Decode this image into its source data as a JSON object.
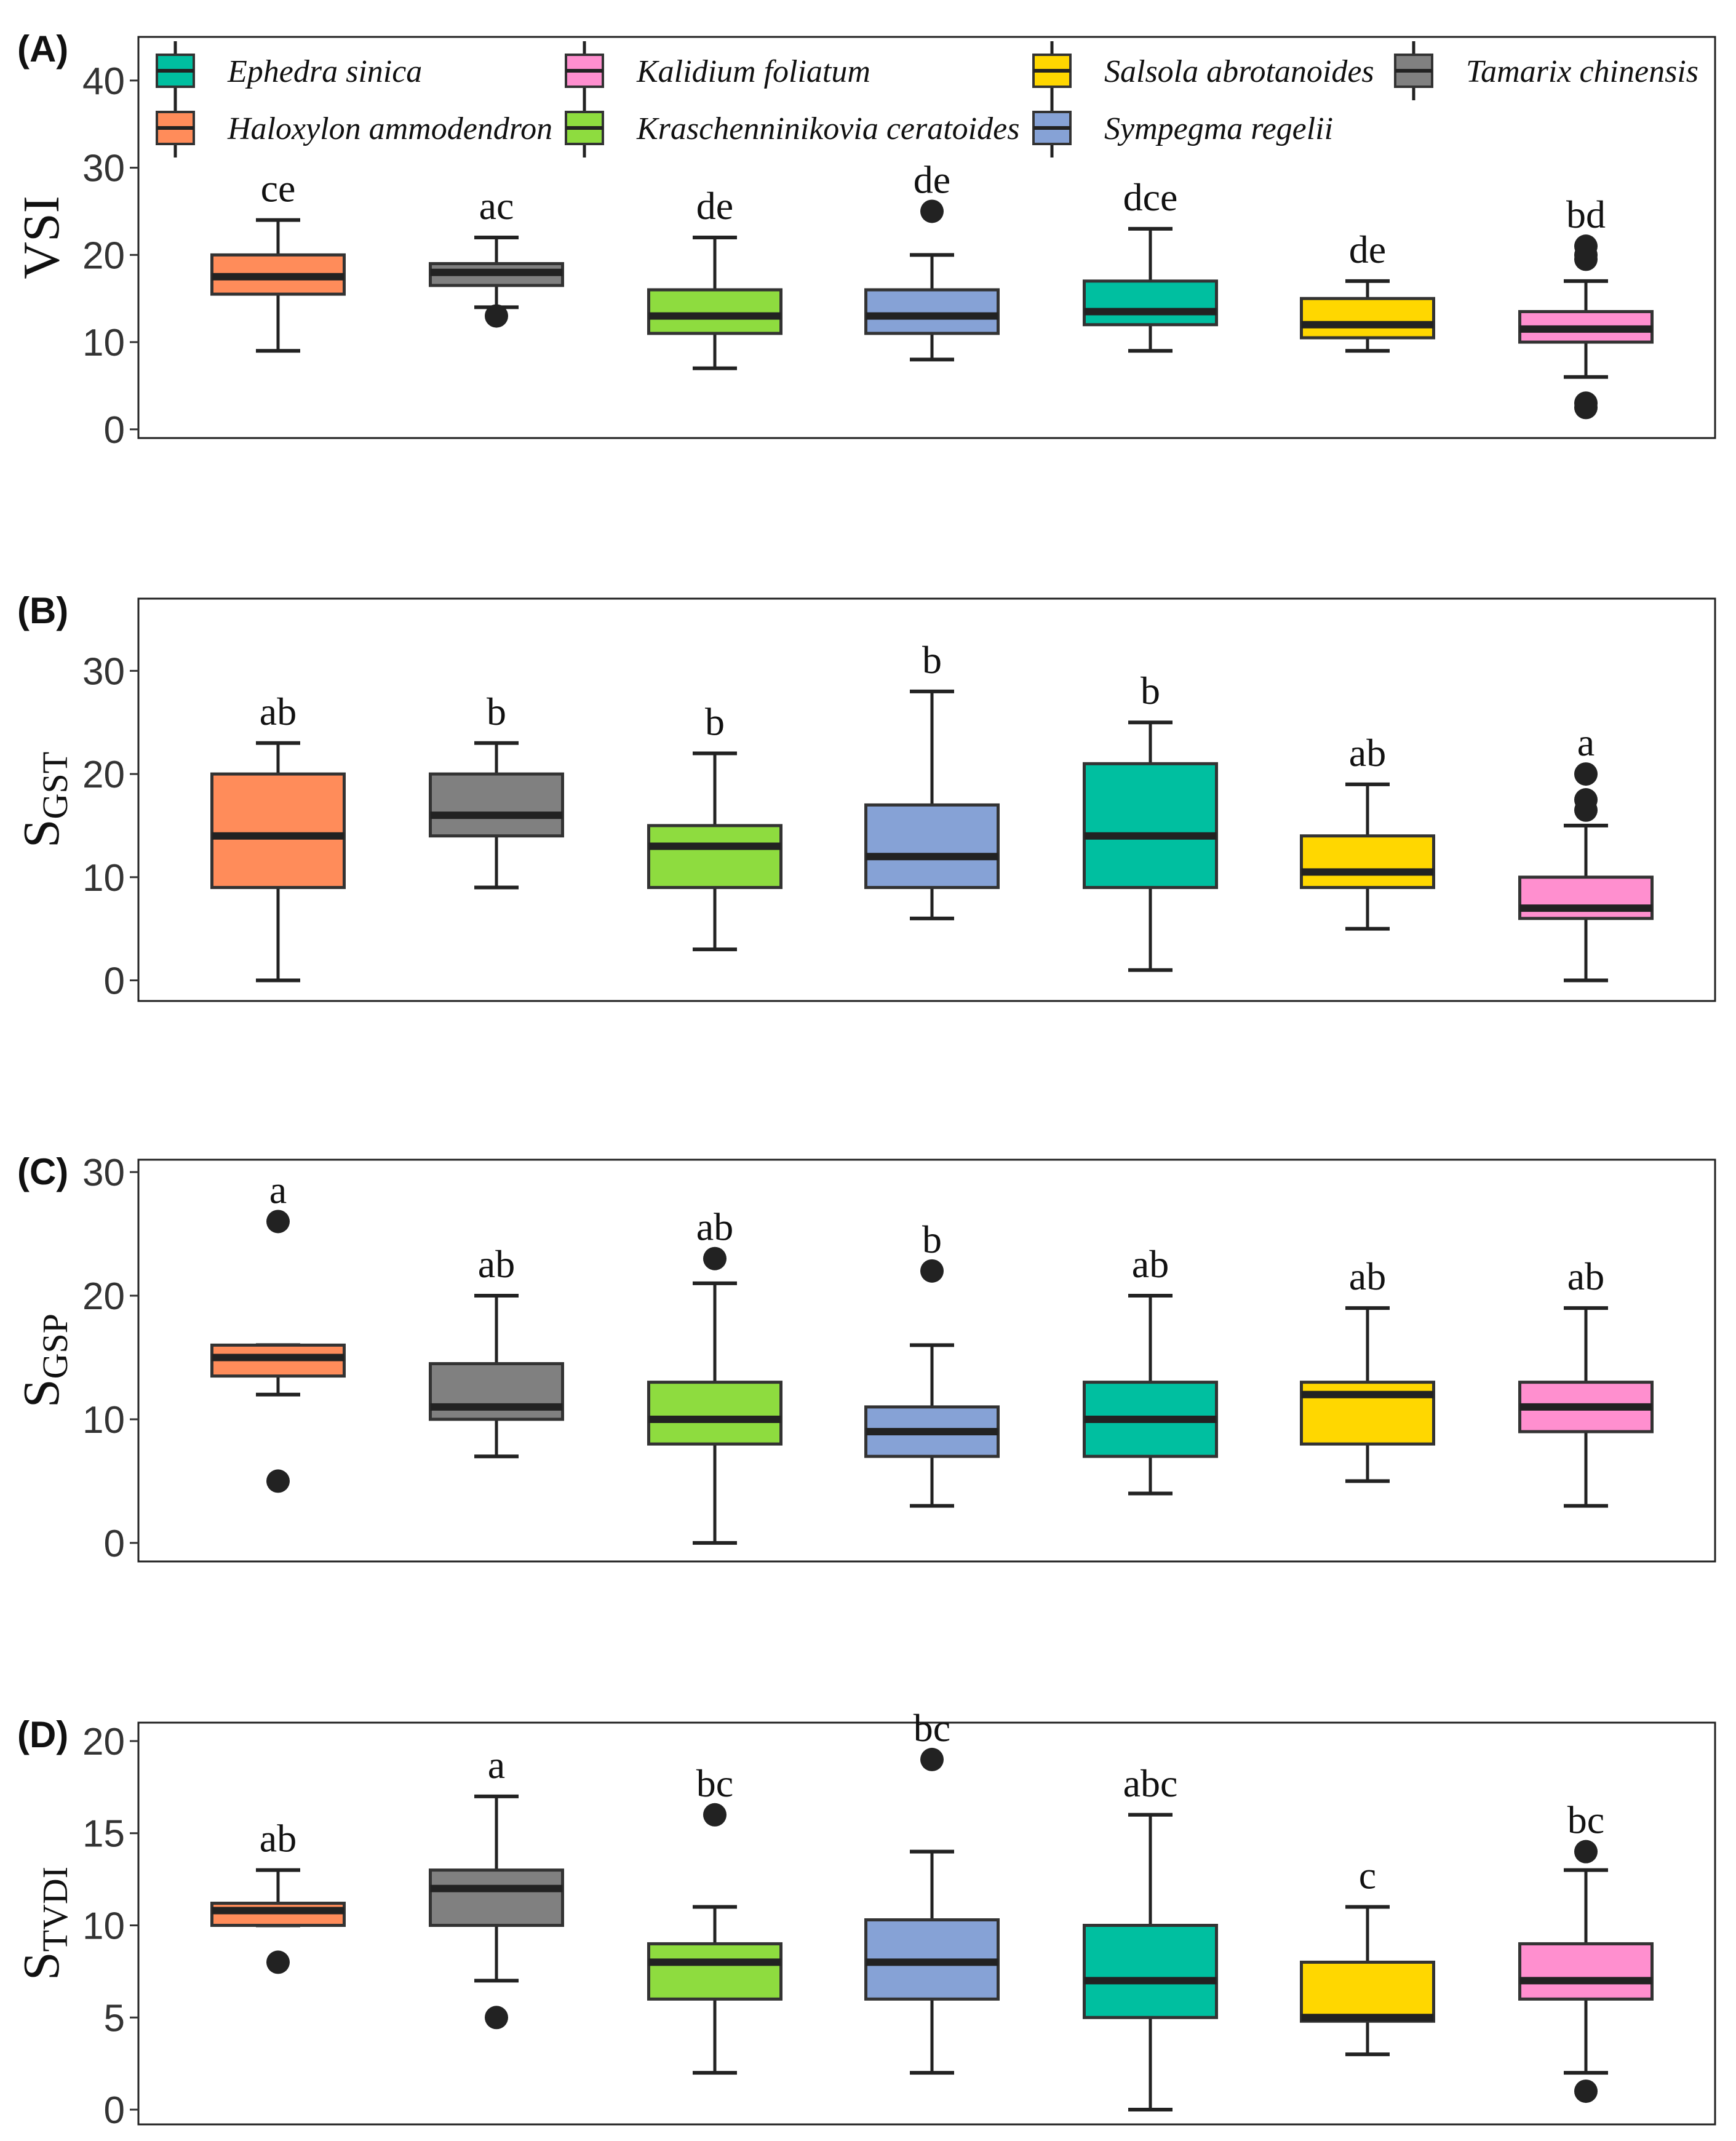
{
  "chart_data": {
    "type": "box",
    "colors": {
      "Ephedra sinica": "#00BFA0",
      "Haloxylon ammodendron": "#FF8C5A",
      "Kalidium foliatum": "#FF8FCF",
      "Kraschenninikovia ceratoides": "#8EDC3F",
      "Salsola abrotanoides": "#FFD700",
      "Sympegma regelii": "#86A2D6",
      "Tamarix chinensis": "#808080"
    },
    "legend": [
      "Ephedra sinica",
      "Kalidium foliatum",
      "Salsola abrotanoides",
      "Tamarix chinensis",
      "Haloxylon ammodendron",
      "Kraschenninikovia ceratoides",
      "Sympegma regelii"
    ],
    "species_order": [
      "Haloxylon ammodendron",
      "Tamarix chinensis",
      "Kraschenninikovia ceratoides",
      "Sympegma regelii",
      "Ephedra sinica",
      "Salsola abrotanoides",
      "Kalidium foliatum"
    ],
    "panels": [
      {
        "label": "(A)",
        "ylabel": "VSI",
        "ylabel_sub": "",
        "ylim": [
          -1,
          45
        ],
        "yticks": [
          "0",
          "10",
          "20",
          "30",
          "40"
        ],
        "tick_values": [
          0,
          10,
          20,
          30,
          40
        ],
        "boxes": [
          {
            "min": 9,
            "q1": 15.5,
            "median": 17.5,
            "q3": 20,
            "max": 24,
            "outliers": [],
            "sig": "ce"
          },
          {
            "min": 14,
            "q1": 16.5,
            "median": 18,
            "q3": 19,
            "max": 22,
            "outliers": [
              13
            ],
            "sig": "ac"
          },
          {
            "min": 7,
            "q1": 11,
            "median": 13,
            "q3": 16,
            "max": 22,
            "outliers": [],
            "sig": "de"
          },
          {
            "min": 8,
            "q1": 11,
            "median": 13,
            "q3": 16,
            "max": 20,
            "outliers": [
              25
            ],
            "sig": "de"
          },
          {
            "min": 9,
            "q1": 12,
            "median": 13.5,
            "q3": 17,
            "max": 23,
            "outliers": [],
            "sig": "dce"
          },
          {
            "min": 9,
            "q1": 10.5,
            "median": 12,
            "q3": 15,
            "max": 17,
            "outliers": [],
            "sig": "de"
          },
          {
            "min": 6,
            "q1": 10,
            "median": 11.5,
            "q3": 13.5,
            "max": 17,
            "outliers": [
              3,
              2.5,
              21,
              20,
              19.5
            ],
            "sig": "bd"
          }
        ]
      },
      {
        "label": "(B)",
        "ylabel": "S",
        "ylabel_sub": "GST",
        "ylim": [
          -2,
          37
        ],
        "yticks": [
          "0",
          "10",
          "20",
          "30"
        ],
        "tick_values": [
          0,
          10,
          20,
          30
        ],
        "boxes": [
          {
            "min": 0,
            "q1": 9,
            "median": 14,
            "q3": 20,
            "max": 23,
            "outliers": [],
            "sig": "ab"
          },
          {
            "min": 9,
            "q1": 14,
            "median": 16,
            "q3": 20,
            "max": 23,
            "outliers": [],
            "sig": "b"
          },
          {
            "min": 3,
            "q1": 9,
            "median": 13,
            "q3": 15,
            "max": 22,
            "outliers": [],
            "sig": "b"
          },
          {
            "min": 6,
            "q1": 9,
            "median": 12,
            "q3": 17,
            "max": 28,
            "outliers": [],
            "sig": "b"
          },
          {
            "min": 1,
            "q1": 9,
            "median": 14,
            "q3": 21,
            "max": 25,
            "outliers": [],
            "sig": "b"
          },
          {
            "min": 5,
            "q1": 9,
            "median": 10.5,
            "q3": 14,
            "max": 19,
            "outliers": [],
            "sig": "ab"
          },
          {
            "min": 0,
            "q1": 6,
            "median": 7,
            "q3": 10,
            "max": 15,
            "outliers": [
              20,
              17.5,
              16.5
            ],
            "sig": "a"
          }
        ]
      },
      {
        "label": "(C)",
        "ylabel": "S",
        "ylabel_sub": "GSP",
        "ylim": [
          -1.5,
          31
        ],
        "yticks": [
          "0",
          "10",
          "20",
          "30"
        ],
        "tick_values": [
          0,
          10,
          20,
          30
        ],
        "boxes": [
          {
            "min": 12,
            "q1": 13.5,
            "median": 15,
            "q3": 16,
            "max": 16,
            "outliers": [
              26,
              5
            ],
            "sig": "a"
          },
          {
            "min": 7,
            "q1": 10,
            "median": 11,
            "q3": 14.5,
            "max": 20,
            "outliers": [],
            "sig": "ab"
          },
          {
            "min": 0,
            "q1": 8,
            "median": 10,
            "q3": 13,
            "max": 21,
            "outliers": [
              23
            ],
            "sig": "ab"
          },
          {
            "min": 3,
            "q1": 7,
            "median": 9,
            "q3": 11,
            "max": 16,
            "outliers": [
              22
            ],
            "sig": "b"
          },
          {
            "min": 4,
            "q1": 7,
            "median": 10,
            "q3": 13,
            "max": 20,
            "outliers": [],
            "sig": "ab"
          },
          {
            "min": 5,
            "q1": 8,
            "median": 12,
            "q3": 13,
            "max": 19,
            "outliers": [],
            "sig": "ab"
          },
          {
            "min": 3,
            "q1": 9,
            "median": 11,
            "q3": 13,
            "max": 19,
            "outliers": [],
            "sig": "ab"
          }
        ]
      },
      {
        "label": "(D)",
        "ylabel": "S",
        "ylabel_sub": "TVDI",
        "ylim": [
          -0.8,
          21
        ],
        "yticks": [
          "0",
          "5",
          "10",
          "15",
          "20"
        ],
        "tick_values": [
          0,
          5,
          10,
          15,
          20
        ],
        "boxes": [
          {
            "min": 10,
            "q1": 10,
            "median": 10.8,
            "q3": 11.2,
            "max": 13,
            "outliers": [
              8
            ],
            "sig": "ab"
          },
          {
            "min": 7,
            "q1": 10,
            "median": 12,
            "q3": 13,
            "max": 17,
            "outliers": [
              5
            ],
            "sig": "a"
          },
          {
            "min": 2,
            "q1": 6,
            "median": 8,
            "q3": 9,
            "max": 11,
            "outliers": [
              16
            ],
            "sig": "bc"
          },
          {
            "min": 2,
            "q1": 6,
            "median": 8,
            "q3": 10.3,
            "max": 14,
            "outliers": [
              19
            ],
            "sig": "bc"
          },
          {
            "min": 0,
            "q1": 5,
            "median": 7,
            "q3": 10,
            "max": 16,
            "outliers": [],
            "sig": "abc"
          },
          {
            "min": 3,
            "q1": 4.8,
            "median": 5,
            "q3": 8,
            "max": 11,
            "outliers": [],
            "sig": "c"
          },
          {
            "min": 2,
            "q1": 6,
            "median": 7,
            "q3": 9,
            "max": 13,
            "outliers": [
              1,
              14
            ],
            "sig": "bc"
          }
        ]
      }
    ]
  }
}
